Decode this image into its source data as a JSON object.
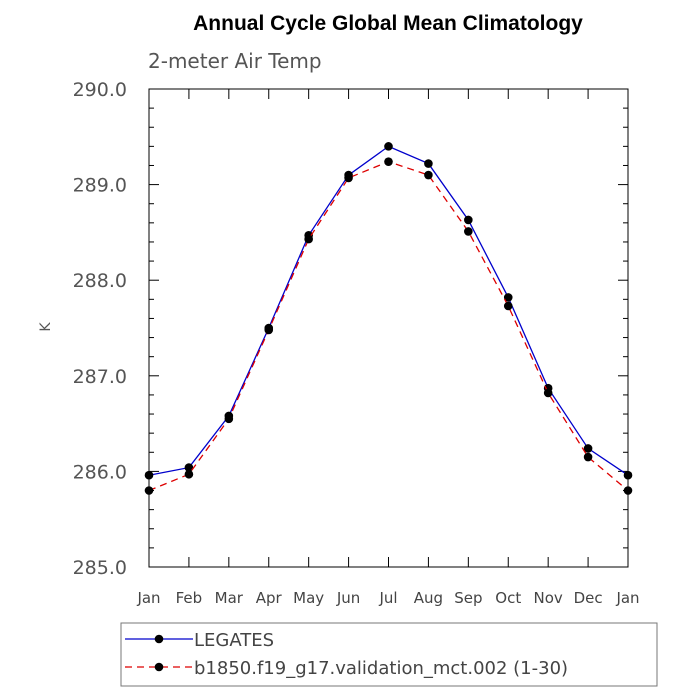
{
  "chart_data": {
    "type": "line",
    "title": "Annual Cycle Global Mean Climatology",
    "subtitle": "2-meter Air Temp",
    "ylabel": "K",
    "xlabel": "",
    "ylim": [
      285.0,
      290.0
    ],
    "yticks": [
      "285.0",
      "286.0",
      "287.0",
      "288.0",
      "289.0",
      "290.0"
    ],
    "categories": [
      "Jan",
      "Feb",
      "Mar",
      "Apr",
      "May",
      "Jun",
      "Jul",
      "Aug",
      "Sep",
      "Oct",
      "Nov",
      "Dec",
      "Jan"
    ],
    "series": [
      {
        "name": "LEGATES",
        "color": "#0000cc",
        "style": "solid",
        "values": [
          285.96,
          286.04,
          286.58,
          287.5,
          288.47,
          289.1,
          289.4,
          289.22,
          288.63,
          287.82,
          286.87,
          286.24,
          285.96
        ]
      },
      {
        "name": "b1850.f19_g17.validation_mct.002 (1-30)",
        "color": "#dd0000",
        "style": "dashed",
        "values": [
          285.8,
          285.97,
          286.55,
          287.48,
          288.43,
          289.07,
          289.24,
          289.1,
          288.51,
          287.73,
          286.82,
          286.15,
          285.8
        ]
      }
    ],
    "legend": {
      "placement": "bottom",
      "boxed": true
    }
  }
}
